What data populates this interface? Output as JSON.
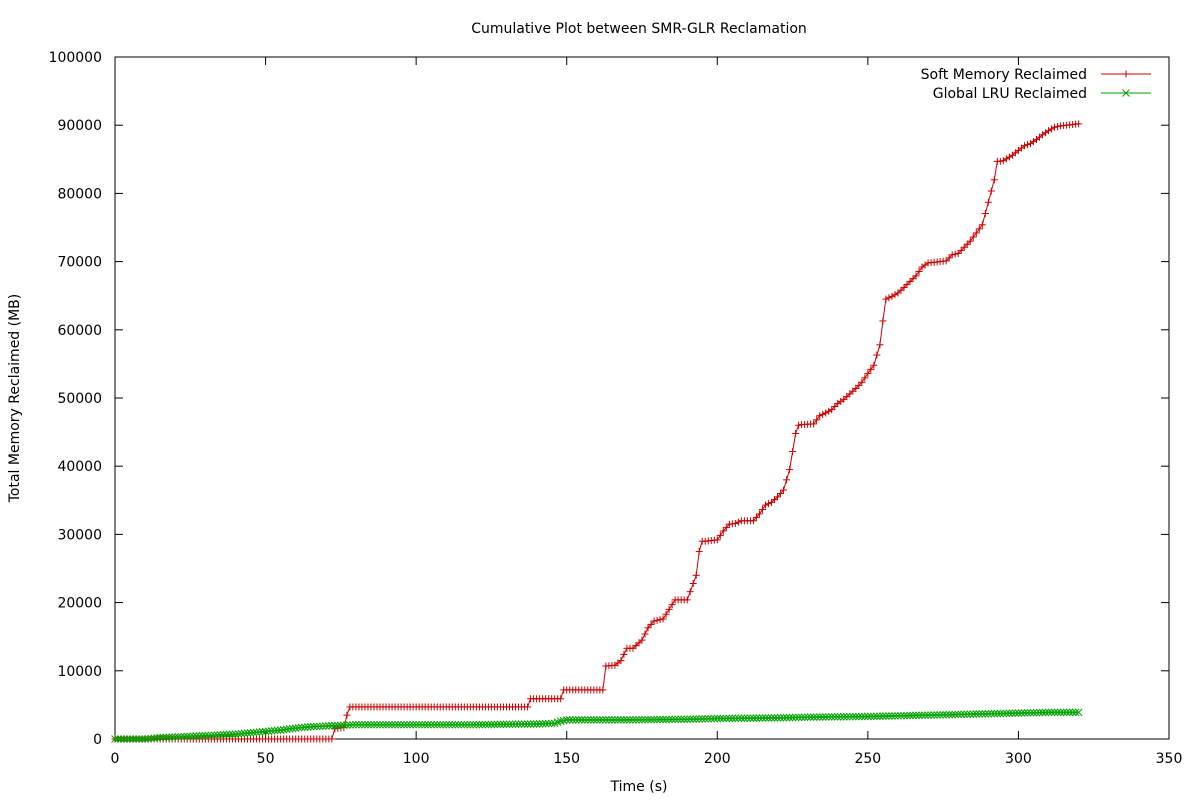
{
  "chart_data": {
    "type": "line",
    "title": "Cumulative Plot between SMR-GLR Reclamation",
    "xlabel": "Time (s)",
    "ylabel": "Total Memory Reclaimed (MB)",
    "xlim": [
      0,
      350
    ],
    "ylim": [
      0,
      100000
    ],
    "xticks": [
      0,
      50,
      100,
      150,
      200,
      250,
      300,
      350
    ],
    "yticks": [
      0,
      10000,
      20000,
      30000,
      40000,
      50000,
      60000,
      70000,
      80000,
      90000,
      100000
    ],
    "grid": false,
    "legend_position": "top-right",
    "series": [
      {
        "name": "Soft Memory Reclaimed",
        "color": "#cc0000",
        "marker": "plus",
        "x": [
          0,
          72,
          73,
          76,
          77,
          78,
          137,
          138,
          148,
          149,
          162,
          163,
          166,
          168,
          170,
          172,
          175,
          177,
          179,
          182,
          184,
          186,
          188,
          190,
          193,
          194,
          195,
          196,
          200,
          202,
          204,
          206,
          208,
          210,
          212,
          214,
          216,
          218,
          220,
          222,
          224,
          226,
          227,
          228,
          232,
          234,
          236,
          238,
          240,
          242,
          244,
          246,
          248,
          250,
          252,
          254,
          255,
          256,
          257,
          258,
          260,
          262,
          264,
          266,
          268,
          270,
          272,
          274,
          276,
          278,
          280,
          282,
          284,
          286,
          288,
          290,
          292,
          293,
          294,
          295,
          298,
          300,
          302,
          304,
          306,
          308,
          310,
          312,
          314,
          316,
          318,
          320
        ],
        "y": [
          0,
          0,
          1500,
          1700,
          3500,
          4700,
          4700,
          5900,
          5900,
          7200,
          7200,
          10700,
          10800,
          11500,
          13300,
          13300,
          14500,
          16300,
          17300,
          17600,
          19000,
          20400,
          20400,
          20400,
          24000,
          27500,
          29000,
          29000,
          29200,
          30500,
          31500,
          31600,
          32000,
          32000,
          32000,
          33000,
          34300,
          34700,
          35500,
          36500,
          39500,
          44800,
          46000,
          46100,
          46200,
          47400,
          47800,
          48300,
          49200,
          49800,
          50600,
          51400,
          52300,
          53600,
          54800,
          57800,
          61300,
          64500,
          64700,
          64900,
          65400,
          66200,
          67100,
          67900,
          69200,
          69800,
          69900,
          70000,
          70100,
          71000,
          71200,
          72100,
          73000,
          74200,
          75400,
          78700,
          82000,
          84700,
          84700,
          84800,
          85600,
          86300,
          87000,
          87300,
          87900,
          88600,
          89200,
          89700,
          89900,
          90000,
          90100,
          90200
        ]
      },
      {
        "name": "Global LRU Reclaimed",
        "color": "#00a000",
        "marker": "cross",
        "x": [
          0,
          10,
          15,
          20,
          25,
          30,
          35,
          40,
          45,
          50,
          55,
          60,
          65,
          70,
          75,
          80,
          100,
          120,
          140,
          146,
          148,
          150,
          160,
          170,
          180,
          190,
          200,
          210,
          220,
          230,
          240,
          250,
          260,
          270,
          280,
          290,
          300,
          310,
          320
        ],
        "y": [
          0,
          0,
          200,
          300,
          400,
          500,
          600,
          700,
          900,
          1100,
          1300,
          1600,
          1800,
          1900,
          2000,
          2100,
          2100,
          2100,
          2200,
          2300,
          2600,
          2800,
          2800,
          2800,
          2850,
          2900,
          3000,
          3050,
          3100,
          3200,
          3250,
          3300,
          3400,
          3500,
          3600,
          3700,
          3800,
          3900,
          3900
        ]
      }
    ]
  }
}
